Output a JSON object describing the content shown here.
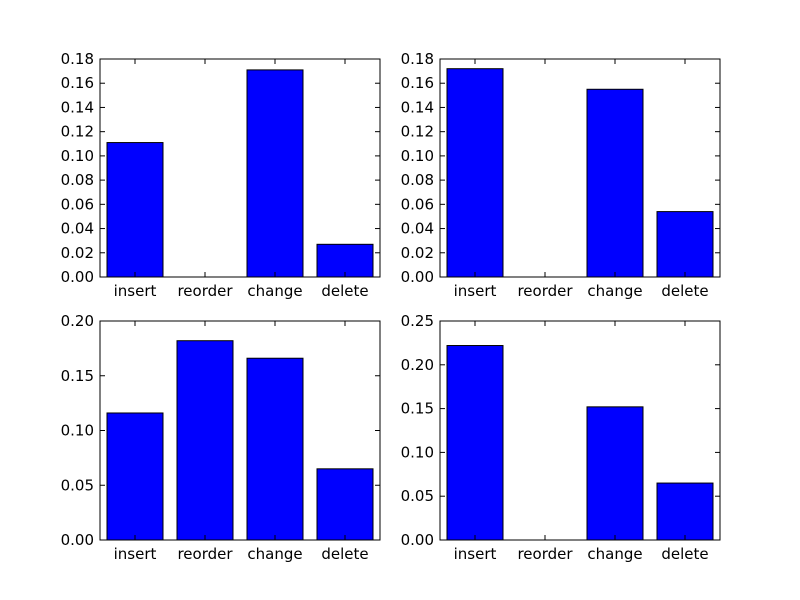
{
  "chart_data": [
    {
      "type": "bar",
      "categories": [
        "insert",
        "reorder",
        "change",
        "delete"
      ],
      "values": [
        0.111,
        0.0,
        0.171,
        0.027
      ],
      "ylim": [
        0,
        0.18
      ],
      "yticks": [
        "0.00",
        "0.02",
        "0.04",
        "0.06",
        "0.08",
        "0.10",
        "0.12",
        "0.14",
        "0.16",
        "0.18"
      ],
      "title": "",
      "xlabel": "",
      "ylabel": "",
      "bar_color": "#0000ff"
    },
    {
      "type": "bar",
      "categories": [
        "insert",
        "reorder",
        "change",
        "delete"
      ],
      "values": [
        0.172,
        0.0,
        0.155,
        0.054
      ],
      "ylim": [
        0,
        0.18
      ],
      "yticks": [
        "0.00",
        "0.02",
        "0.04",
        "0.06",
        "0.08",
        "0.10",
        "0.12",
        "0.14",
        "0.16",
        "0.18"
      ],
      "title": "",
      "xlabel": "",
      "ylabel": "",
      "bar_color": "#0000ff"
    },
    {
      "type": "bar",
      "categories": [
        "insert",
        "reorder",
        "change",
        "delete"
      ],
      "values": [
        0.116,
        0.182,
        0.166,
        0.065
      ],
      "ylim": [
        0,
        0.2
      ],
      "yticks": [
        "0.00",
        "0.05",
        "0.10",
        "0.15",
        "0.20"
      ],
      "title": "",
      "xlabel": "",
      "ylabel": "",
      "bar_color": "#0000ff"
    },
    {
      "type": "bar",
      "categories": [
        "insert",
        "reorder",
        "change",
        "delete"
      ],
      "values": [
        0.222,
        0.0,
        0.152,
        0.065
      ],
      "ylim": [
        0,
        0.25
      ],
      "yticks": [
        "0.00",
        "0.05",
        "0.10",
        "0.15",
        "0.20",
        "0.25"
      ],
      "title": "",
      "xlabel": "",
      "ylabel": "",
      "bar_color": "#0000ff"
    }
  ]
}
